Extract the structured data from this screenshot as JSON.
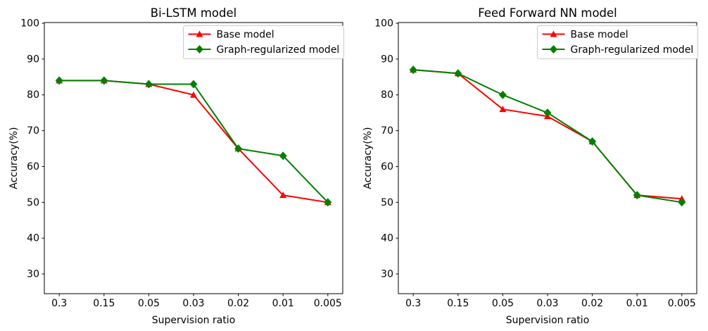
{
  "figure": {
    "background": "#ffffff",
    "text_color": "#000000",
    "legend_border_color": "#cccccc"
  },
  "chart_data": [
    {
      "type": "line",
      "title": "Bi-LSTM model",
      "xlabel": "Supervision ratio",
      "ylabel": "Accuracy(%)",
      "categories": [
        "0.3",
        "0.15",
        "0.05",
        "0.03",
        "0.02",
        "0.01",
        "0.005"
      ],
      "yticks": [
        30,
        40,
        50,
        60,
        70,
        80,
        90,
        100
      ],
      "ylim": [
        24.5,
        100.2
      ],
      "grid": false,
      "legend_position": "upper right",
      "series": [
        {
          "name": "Base model",
          "color": "#ff0000",
          "marker": "triangle",
          "values": [
            84,
            84,
            83,
            80,
            65,
            52,
            50
          ]
        },
        {
          "name": "Graph-regularized model",
          "color": "#008000",
          "marker": "diamond",
          "values": [
            84,
            84,
            83,
            83,
            65,
            63,
            50
          ]
        }
      ]
    },
    {
      "type": "line",
      "title": "Feed Forward NN model",
      "xlabel": "Supervision ratio",
      "ylabel": "Accuracy(%)",
      "categories": [
        "0.3",
        "0.15",
        "0.05",
        "0.03",
        "0.02",
        "0.01",
        "0.005"
      ],
      "yticks": [
        30,
        40,
        50,
        60,
        70,
        80,
        90,
        100
      ],
      "ylim": [
        24.5,
        100.2
      ],
      "grid": false,
      "legend_position": "upper right",
      "series": [
        {
          "name": "Base model",
          "color": "#ff0000",
          "marker": "triangle",
          "values": [
            87,
            86,
            76,
            74,
            67,
            52,
            51
          ]
        },
        {
          "name": "Graph-regularized model",
          "color": "#008000",
          "marker": "diamond",
          "values": [
            87,
            86,
            80,
            75,
            67,
            52,
            50
          ]
        }
      ]
    }
  ]
}
